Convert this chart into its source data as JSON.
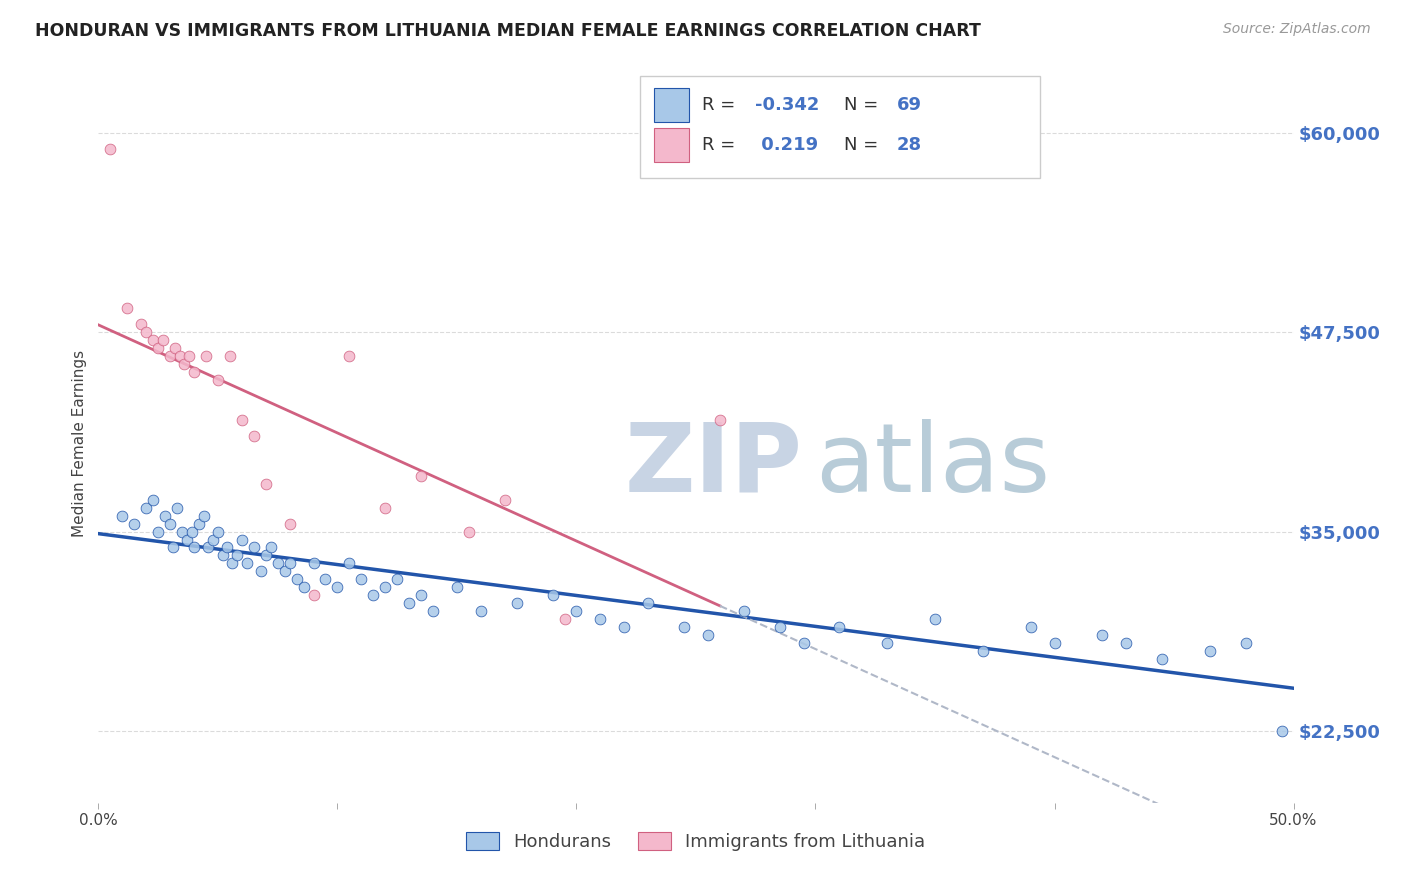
{
  "title": "HONDURAN VS IMMIGRANTS FROM LITHUANIA MEDIAN FEMALE EARNINGS CORRELATION CHART",
  "source": "Source: ZipAtlas.com",
  "ylabel": "Median Female Earnings",
  "yticks": [
    22500,
    35000,
    47500,
    60000
  ],
  "ytick_labels": [
    "$22,500",
    "$35,000",
    "$47,500",
    "$60,000"
  ],
  "xlim": [
    0.0,
    50.0
  ],
  "ylim": [
    18000,
    63000
  ],
  "blue_dot_color": "#a8c8e8",
  "blue_line_color": "#2255aa",
  "pink_dot_color": "#f4b8cc",
  "pink_line_color": "#d06080",
  "gray_dash_color": "#b0b8c8",
  "R_blue": -0.342,
  "N_blue": 69,
  "R_pink": 0.219,
  "N_pink": 28,
  "legend_label_blue": "Hondurans",
  "legend_label_pink": "Immigrants from Lithuania",
  "blue_points_x": [
    1.0,
    1.5,
    2.0,
    2.3,
    2.5,
    2.8,
    3.0,
    3.1,
    3.3,
    3.5,
    3.7,
    3.9,
    4.0,
    4.2,
    4.4,
    4.6,
    4.8,
    5.0,
    5.2,
    5.4,
    5.6,
    5.8,
    6.0,
    6.2,
    6.5,
    6.8,
    7.0,
    7.2,
    7.5,
    7.8,
    8.0,
    8.3,
    8.6,
    9.0,
    9.5,
    10.0,
    10.5,
    11.0,
    11.5,
    12.0,
    12.5,
    13.0,
    13.5,
    14.0,
    15.0,
    16.0,
    17.5,
    19.0,
    20.0,
    21.0,
    22.0,
    23.0,
    24.5,
    25.5,
    27.0,
    28.5,
    29.5,
    31.0,
    33.0,
    35.0,
    37.0,
    39.0,
    40.0,
    42.0,
    43.0,
    44.5,
    46.5,
    48.0,
    49.5
  ],
  "blue_points_y": [
    36000,
    35500,
    36500,
    37000,
    35000,
    36000,
    35500,
    34000,
    36500,
    35000,
    34500,
    35000,
    34000,
    35500,
    36000,
    34000,
    34500,
    35000,
    33500,
    34000,
    33000,
    33500,
    34500,
    33000,
    34000,
    32500,
    33500,
    34000,
    33000,
    32500,
    33000,
    32000,
    31500,
    33000,
    32000,
    31500,
    33000,
    32000,
    31000,
    31500,
    32000,
    30500,
    31000,
    30000,
    31500,
    30000,
    30500,
    31000,
    30000,
    29500,
    29000,
    30500,
    29000,
    28500,
    30000,
    29000,
    28000,
    29000,
    28000,
    29500,
    27500,
    29000,
    28000,
    28500,
    28000,
    27000,
    27500,
    28000,
    22500
  ],
  "pink_points_x": [
    0.5,
    1.2,
    1.8,
    2.0,
    2.3,
    2.5,
    2.7,
    3.0,
    3.2,
    3.4,
    3.6,
    3.8,
    4.0,
    4.5,
    5.0,
    5.5,
    6.0,
    6.5,
    7.0,
    8.0,
    9.0,
    10.5,
    12.0,
    13.5,
    15.5,
    17.0,
    19.5,
    26.0
  ],
  "pink_points_y": [
    59000,
    49000,
    48000,
    47500,
    47000,
    46500,
    47000,
    46000,
    46500,
    46000,
    45500,
    46000,
    45000,
    46000,
    44500,
    46000,
    42000,
    41000,
    38000,
    35500,
    31000,
    46000,
    36500,
    38500,
    35000,
    37000,
    29500,
    42000
  ],
  "background_color": "#ffffff",
  "grid_color": "#cccccc",
  "title_color": "#222222",
  "axis_label_color": "#444444",
  "ytick_color": "#4472c4",
  "watermark_zip_color": "#c8d4e4",
  "watermark_atlas_color": "#b8ccd8"
}
